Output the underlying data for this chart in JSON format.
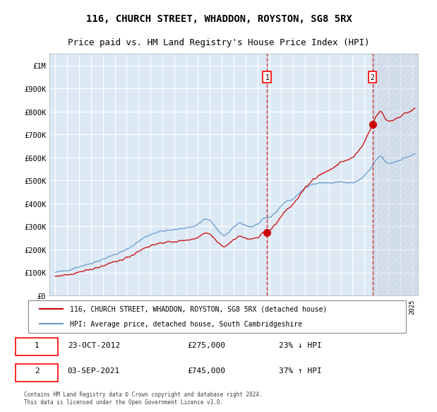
{
  "title1": "116, CHURCH STREET, WHADDON, ROYSTON, SG8 5RX",
  "title2": "Price paid vs. HM Land Registry's House Price Index (HPI)",
  "legend_line1": "116, CHURCH STREET, WHADDON, ROYSTON, SG8 5RX (detached house)",
  "legend_line2": "HPI: Average price, detached house, South Cambridgeshire",
  "annotation1_label": "1",
  "annotation1_date": "23-OCT-2012",
  "annotation1_price": "£275,000",
  "annotation1_hpi": "23% ↓ HPI",
  "annotation2_label": "2",
  "annotation2_date": "03-SEP-2021",
  "annotation2_price": "£745,000",
  "annotation2_hpi": "37% ↑ HPI",
  "footer": "Contains HM Land Registry data © Crown copyright and database right 2024.\nThis data is licensed under the Open Government Licence v3.0.",
  "hpi_color": "#6699cc",
  "property_color": "#cc0000",
  "vline_color": "#cc0000",
  "bg_color": "#dce9f5",
  "hatch_color": "#c0c8d8",
  "ylim": [
    0,
    1050000
  ],
  "sale1_year": 2012.81,
  "sale1_price": 275000,
  "sale2_year": 2021.67,
  "sale2_price": 745000
}
